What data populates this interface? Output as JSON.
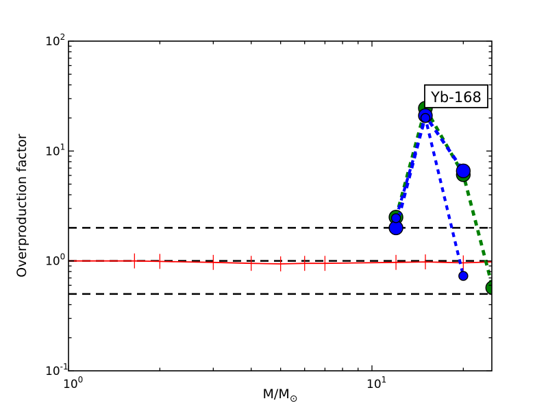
{
  "chart_data": {
    "type": "line",
    "title": "",
    "annotation": {
      "text": "Yb-168"
    },
    "xlabel_main": "M/M",
    "xlabel_sub": "⊙",
    "ylabel": "Overproduction factor",
    "axes": {
      "x": {
        "scale": "log",
        "min": 1.0,
        "max": 24.8,
        "major_ticks": [
          {
            "value": 1,
            "mantissa": "10",
            "exponent": "0"
          },
          {
            "value": 10,
            "mantissa": "10",
            "exponent": "1"
          }
        ],
        "minor_ticks": [
          2,
          3,
          4,
          5,
          6,
          7,
          8,
          9,
          20
        ]
      },
      "y": {
        "scale": "log",
        "min": 0.1,
        "max": 100,
        "major_ticks": [
          {
            "value": 0.1,
            "mantissa": "10",
            "exponent": "-1"
          },
          {
            "value": 1,
            "mantissa": "10",
            "exponent": "0"
          },
          {
            "value": 10,
            "mantissa": "10",
            "exponent": "1"
          },
          {
            "value": 100,
            "mantissa": "10",
            "exponent": "2"
          }
        ],
        "minor_ticks": [
          0.2,
          0.3,
          0.4,
          0.5,
          0.6,
          0.7,
          0.8,
          0.9,
          2,
          3,
          4,
          5,
          6,
          7,
          8,
          9,
          20,
          30,
          40,
          50,
          60,
          70,
          80,
          90
        ]
      },
      "grid": false
    },
    "colors": {
      "blue": "#0000ff",
      "green": "#008000",
      "red": "#ff0000",
      "black": "#000000",
      "frame": "#000000",
      "annotation_bg": "#ffffff"
    },
    "reference_lines": [
      {
        "name": "upper-factor-2",
        "y": 2.0,
        "color": "#000000",
        "style": "dashed",
        "width": 2.5
      },
      {
        "name": "unity",
        "y": 1.0,
        "color": "#000000",
        "style": "dashed",
        "width": 2.5
      },
      {
        "name": "lower-factor-2",
        "y": 0.5,
        "color": "#000000",
        "style": "dashed",
        "width": 2.5
      }
    ],
    "red_reference": {
      "name": "solar-normalized-baseline",
      "color": "#ff0000",
      "line": [
        [
          1.0,
          1.0
        ],
        [
          1.65,
          1.0
        ],
        [
          2,
          0.99
        ],
        [
          3,
          0.97
        ],
        [
          4,
          0.95
        ],
        [
          5,
          0.94
        ],
        [
          6,
          0.95
        ],
        [
          7,
          0.95
        ],
        [
          12,
          0.97
        ],
        [
          15,
          0.98
        ],
        [
          20,
          0.96
        ],
        [
          24.8,
          0.98
        ]
      ],
      "error_bars": {
        "x": [
          1.65,
          2,
          3,
          4,
          5,
          6,
          7,
          12,
          15,
          20,
          25
        ],
        "y": [
          1.0,
          0.99,
          0.97,
          0.95,
          0.94,
          0.95,
          0.95,
          0.97,
          0.98,
          0.96,
          0.98
        ],
        "factor_lo": 1.17,
        "factor_hi": 1.17
      }
    },
    "series": [
      {
        "name": "green-model",
        "color": "#008000",
        "dash": "8 7",
        "width": 4.8,
        "marker": "circle",
        "marker_radius": 10,
        "points": [
          [
            12,
            2.5
          ],
          [
            15,
            24.5
          ],
          [
            20,
            6.1
          ],
          [
            25,
            0.57
          ]
        ]
      },
      {
        "name": "blue-model-large",
        "color": "#0000ff",
        "dash": "8 7",
        "width": 4.8,
        "marker": "circle",
        "marker_radius": 10,
        "points": [
          [
            12,
            2.0
          ],
          [
            15,
            21.0
          ],
          [
            20,
            6.6
          ]
        ]
      },
      {
        "name": "blue-model-small",
        "color": "#0000ff",
        "dash": "7 6.5",
        "width": 4.2,
        "marker": "circle",
        "marker_radius": 6.5,
        "points": [
          [
            12,
            2.45
          ],
          [
            15,
            20.0
          ],
          [
            20,
            0.73
          ]
        ]
      }
    ],
    "legend": null
  }
}
